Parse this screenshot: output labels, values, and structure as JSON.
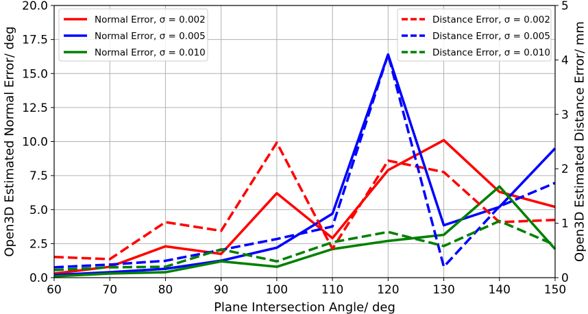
{
  "chart_data": {
    "type": "line",
    "x": [
      60,
      70,
      80,
      90,
      100,
      110,
      120,
      130,
      140,
      150
    ],
    "xlabel": "Plane Intersection Angle/ deg",
    "ylabel_left": "Open3D Estimated Normal Error/ deg",
    "ylabel_right": "Open3D Estimated Distance Error/ mm",
    "xlim": [
      60,
      150
    ],
    "ylim_left": [
      0,
      20
    ],
    "ylim_right": [
      0,
      5
    ],
    "xticks": [
      "60",
      "70",
      "80",
      "90",
      "100",
      "110",
      "120",
      "130",
      "140",
      "150"
    ],
    "yticks_left": [
      "0.0",
      "2.5",
      "5.0",
      "7.5",
      "10.0",
      "12.5",
      "15.0",
      "17.5",
      "20.0"
    ],
    "yticks_right": [
      "0",
      "1",
      "2",
      "3",
      "4",
      "5"
    ],
    "grid": true,
    "legend_left_placement": "upper-left",
    "legend_right_placement": "upper-right",
    "series": [
      {
        "name": "Normal Error, σ = 0.002",
        "axis": "left",
        "style": "solid",
        "color": "#ff0000",
        "values": [
          0.3,
          0.8,
          2.3,
          1.75,
          6.2,
          2.9,
          7.9,
          10.1,
          6.3,
          5.2
        ]
      },
      {
        "name": "Normal Error, σ = 0.005",
        "axis": "left",
        "style": "solid",
        "color": "#0000ff",
        "values": [
          0.2,
          0.4,
          0.65,
          1.25,
          2.2,
          4.7,
          16.4,
          3.85,
          5.2,
          9.5
        ]
      },
      {
        "name": "Normal Error, σ = 0.010",
        "axis": "left",
        "style": "solid",
        "color": "#008000",
        "values": [
          0.1,
          0.3,
          0.4,
          1.2,
          0.8,
          2.1,
          2.7,
          3.15,
          6.7,
          2.1
        ]
      },
      {
        "name": "Distance Error, σ = 0.002",
        "axis": "right",
        "style": "dashed",
        "color": "#ff0000",
        "values": [
          0.38,
          0.34,
          1.02,
          0.86,
          2.48,
          0.53,
          2.15,
          1.94,
          1.02,
          1.06
        ]
      },
      {
        "name": "Distance Error, σ = 0.005",
        "axis": "right",
        "style": "dashed",
        "color": "#0000ff",
        "values": [
          0.19,
          0.24,
          0.31,
          0.51,
          0.71,
          0.94,
          4.1,
          0.2,
          1.31,
          1.74
        ]
      },
      {
        "name": "Distance Error, σ = 0.010",
        "axis": "right",
        "style": "dashed",
        "color": "#008000",
        "values": [
          0.14,
          0.19,
          0.2,
          0.52,
          0.3,
          0.65,
          0.84,
          0.58,
          1.04,
          0.6
        ]
      }
    ]
  }
}
